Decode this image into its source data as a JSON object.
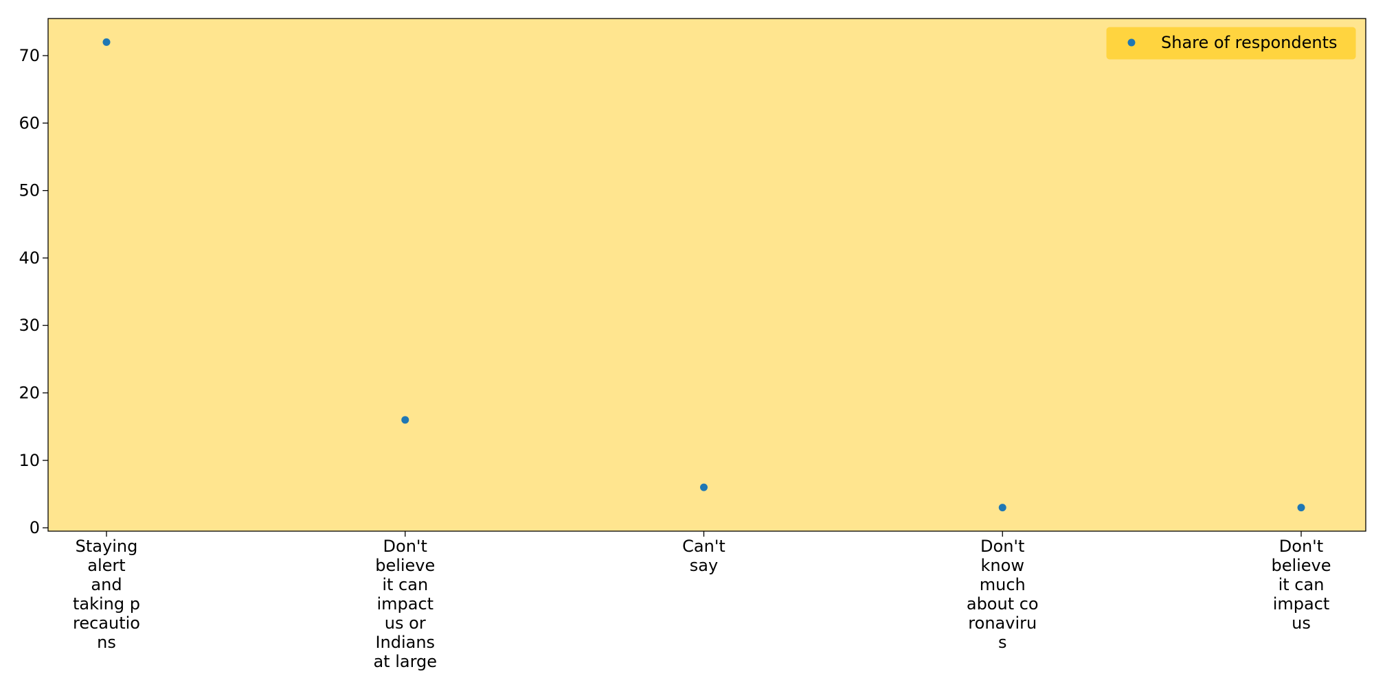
{
  "chart_data": {
    "type": "scatter",
    "title": "",
    "xlabel": "",
    "ylabel": "",
    "categories": [
      [
        "Staying",
        "alert",
        "and",
        "taking p",
        "recautio",
        "ns"
      ],
      [
        "Don't",
        "believe",
        "it can",
        "impact",
        "us or",
        "Indians",
        "at large"
      ],
      [
        "Can't",
        "say"
      ],
      [
        "Don't",
        "know",
        "much",
        "about co",
        "ronaviru",
        "s"
      ],
      [
        "Don't",
        "believe",
        "it can",
        "impact",
        "us"
      ]
    ],
    "series": [
      {
        "name": "Share of respondents",
        "values": [
          72,
          16,
          6,
          3,
          3
        ]
      }
    ],
    "ylim": [
      -0.5,
      75.5
    ],
    "yticks": [
      0,
      10,
      20,
      30,
      40,
      50,
      60,
      70
    ],
    "grid": false,
    "legend_position": "top-right",
    "colors": {
      "plot_background": "#FFE58F",
      "legend_background": "#FFD43F",
      "marker": "#1F77B4",
      "axes": "#000000"
    }
  }
}
